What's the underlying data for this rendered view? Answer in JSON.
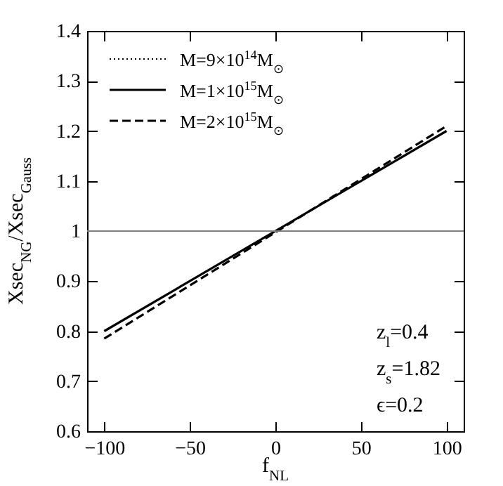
{
  "chart_data": {
    "type": "line",
    "xlabel": "f$_{NL}$",
    "ylabel": "Xsec$_{NG}$/Xsec$_{Gauss}$",
    "x": [
      -100,
      100
    ],
    "series": [
      {
        "name": "M=9×10$^{14}$M$_{⊙}$",
        "color": "#000000",
        "line_style": "dotted",
        "values": [
          null,
          null
        ]
      },
      {
        "name": "M=1×10$^{15}$M$_{⊙}$",
        "color": "#000000",
        "line_style": "solid",
        "values": [
          0.8,
          1.2
        ]
      },
      {
        "name": "M=2×10$^{15}$M$_{⊙}$",
        "color": "#000000",
        "line_style": "dashed",
        "values": [
          0.785,
          1.21
        ]
      }
    ],
    "xlim": [
      -110,
      110
    ],
    "xticks": [
      -100,
      -50,
      0,
      50,
      100
    ],
    "ylim": [
      0.6,
      1.4
    ],
    "yticks": [
      0.6,
      0.7,
      0.8,
      0.9,
      1,
      1.1,
      1.2,
      1.3,
      1.4
    ],
    "ref_lines": [
      {
        "axis": "y",
        "value": 1,
        "color": "#808080"
      }
    ],
    "legend": "top left",
    "grid": false,
    "marker": "none",
    "annotations": [
      "z$_{l}$=0.4",
      "z$_{s}$=1.82",
      "ϵ=0.2"
    ]
  }
}
